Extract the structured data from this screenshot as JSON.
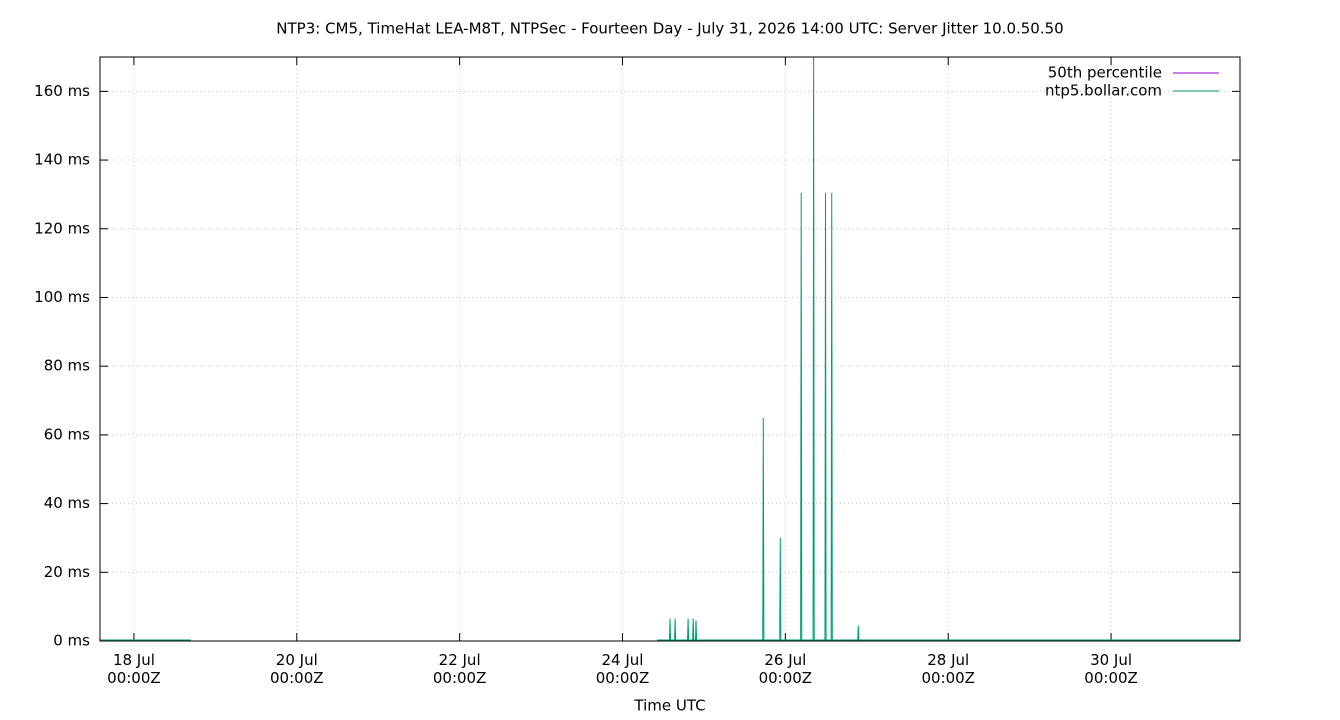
{
  "chart_data": {
    "type": "line",
    "title": "NTP3: CM5, TimeHat LEA-M8T, NTPSec - Fourteen Day - July 31, 2026 14:00 UTC: Server Jitter 10.0.50.50",
    "x_label": "Time UTC",
    "x": [
      "17 Jul 14:00",
      "18 Jul 16:50",
      "18 Jul 17:00",
      "24 Jul 10:10",
      "24 Jul 13:50",
      "24 Jul 14:00",
      "24 Jul 14:10",
      "24 Jul 15:20",
      "24 Jul 15:30",
      "24 Jul 15:40",
      "24 Jul 19:10",
      "24 Jul 19:20",
      "24 Jul 19:30",
      "24 Jul 20:40",
      "24 Jul 20:50",
      "24 Jul 21:00",
      "24 Jul 21:30",
      "24 Jul 21:40",
      "24 Jul 21:50",
      "25 Jul 17:20",
      "25 Jul 17:30",
      "25 Jul 17:40",
      "25 Jul 22:20",
      "25 Jul 22:30",
      "25 Jul 22:40",
      "26 Jul 04:30",
      "26 Jul 04:40",
      "26 Jul 04:50",
      "26 Jul 08:10",
      "26 Jul 08:20",
      "26 Jul 08:30",
      "26 Jul 11:40",
      "26 Jul 11:50",
      "26 Jul 12:00",
      "26 Jul 13:30",
      "26 Jul 13:40",
      "26 Jul 13:50",
      "26 Jul 21:20",
      "26 Jul 21:30",
      "26 Jul 21:40",
      "31 Jul 14:00"
    ],
    "series": [
      {
        "name": "50th percentile",
        "color": "#9400d3",
        "values": [
          0.3,
          0.3,
          null,
          0.3,
          0.3,
          0.3,
          0.3,
          0.3,
          0.3,
          0.3,
          0.3,
          0.3,
          0.3,
          0.3,
          0.3,
          0.3,
          0.3,
          0.3,
          0.3,
          0.3,
          0.3,
          0.3,
          0.3,
          0.3,
          0.3,
          0.3,
          0.3,
          0.3,
          0.3,
          0.3,
          0.3,
          0.3,
          0.3,
          0.3,
          0.3,
          0.3,
          0.3,
          0.3,
          0.3,
          0.3,
          0.3
        ]
      },
      {
        "name": "ntp5.bollar.com",
        "color": "#009e73",
        "values": [
          0.3,
          0.3,
          null,
          0.3,
          0.3,
          6.5,
          0.3,
          0.3,
          6.5,
          0.3,
          0.3,
          6.5,
          0.3,
          0.3,
          6.5,
          0.3,
          0.3,
          6,
          0.3,
          0.3,
          65,
          0.3,
          0.3,
          30,
          0.3,
          0.3,
          130.5,
          0.3,
          0.3,
          170,
          0.3,
          0.3,
          130.5,
          0.3,
          0.3,
          130.5,
          0.3,
          0.3,
          4.5,
          0.3,
          0.3
        ]
      }
    ],
    "xlim": [
      "17 Jul 14:00",
      "31 Jul 14:00"
    ],
    "xticks": [
      {
        "value": "18 Jul 00:00",
        "label": "18 Jul\n00:00Z"
      },
      {
        "value": "20 Jul 00:00",
        "label": "20 Jul\n00:00Z"
      },
      {
        "value": "22 Jul 00:00",
        "label": "22 Jul\n00:00Z"
      },
      {
        "value": "24 Jul 00:00",
        "label": "24 Jul\n00:00Z"
      },
      {
        "value": "26 Jul 00:00",
        "label": "26 Jul\n00:00Z"
      },
      {
        "value": "28 Jul 00:00",
        "label": "28 Jul\n00:00Z"
      },
      {
        "value": "30 Jul 00:00",
        "label": "30 Jul\n00:00Z"
      }
    ],
    "ylim": [
      0,
      170
    ],
    "yticks": [
      {
        "value": 0,
        "label": "0 ms"
      },
      {
        "value": 20,
        "label": "20 ms"
      },
      {
        "value": 40,
        "label": "40 ms"
      },
      {
        "value": 60,
        "label": "60 ms"
      },
      {
        "value": 80,
        "label": "80 ms"
      },
      {
        "value": 100,
        "label": "100 ms"
      },
      {
        "value": 120,
        "label": "120 ms"
      },
      {
        "value": 140,
        "label": "140 ms"
      },
      {
        "value": 160,
        "label": "160 ms"
      }
    ],
    "grid": true,
    "legend": "top-right"
  }
}
